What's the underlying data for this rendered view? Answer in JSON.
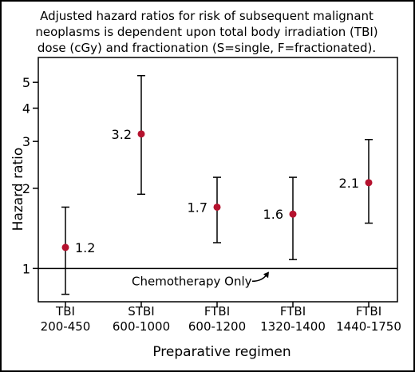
{
  "chart_data": {
    "type": "scatter",
    "title_lines": [
      "Adjusted hazard ratios for risk of subsequent malignant",
      "neoplasms is dependent upon total body irradiation (TBI)",
      "dose (cGy) and fractionation (S=single, F=fractionated)."
    ],
    "xlabel": "Preparative regimen",
    "ylabel": "Hazard ratio",
    "y_scale": "log",
    "ylim": [
      0.75,
      6.2
    ],
    "yticks": [
      1,
      2,
      3,
      4,
      5
    ],
    "categories": [
      {
        "line1": "TBI",
        "line2": "200-450"
      },
      {
        "line1": "STBI",
        "line2": "600-1000"
      },
      {
        "line1": "FTBI",
        "line2": "600-1200"
      },
      {
        "line1": "FTBI",
        "line2": "1320-1400"
      },
      {
        "line1": "FTBI",
        "line2": "1440-1750"
      }
    ],
    "points": [
      {
        "value": 1.2,
        "label": "1.2",
        "ci_low": 0.8,
        "ci_high": 1.7,
        "label_side": "right"
      },
      {
        "value": 3.2,
        "label": "3.2",
        "ci_low": 1.9,
        "ci_high": 5.3,
        "label_side": "left"
      },
      {
        "value": 1.7,
        "label": "1.7",
        "ci_low": 1.25,
        "ci_high": 2.2,
        "label_side": "left"
      },
      {
        "value": 1.6,
        "label": "1.6",
        "ci_low": 1.08,
        "ci_high": 2.2,
        "label_side": "left"
      },
      {
        "value": 2.1,
        "label": "2.1",
        "ci_low": 1.48,
        "ci_high": 3.05,
        "label_side": "left"
      }
    ],
    "reference_line": {
      "value": 1,
      "label": "Chemotherapy Only"
    },
    "point_color": "#b5122e",
    "grid": false
  }
}
